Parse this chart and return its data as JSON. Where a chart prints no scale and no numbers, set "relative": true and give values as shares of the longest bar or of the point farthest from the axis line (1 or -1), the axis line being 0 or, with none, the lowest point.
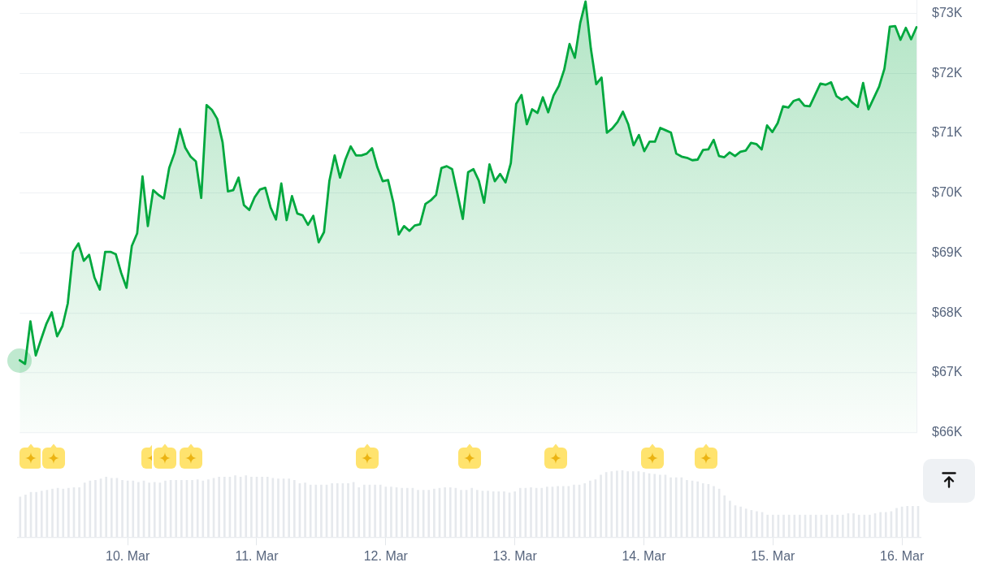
{
  "chart_data": [
    {
      "type": "area",
      "color": "#00a83e",
      "categories": [
        null,
        null,
        null,
        null,
        null,
        null,
        null,
        null,
        null,
        null,
        null,
        null,
        null,
        null,
        null,
        null,
        null,
        null,
        null,
        null,
        null,
        null,
        null,
        null,
        null,
        null,
        null,
        null,
        null,
        null,
        null,
        null,
        null,
        null,
        null,
        null,
        null,
        null,
        null,
        null,
        null,
        null,
        null,
        null,
        null,
        null,
        null,
        null,
        null,
        null,
        null,
        null,
        null,
        null,
        null,
        null,
        null,
        null,
        null,
        null,
        null,
        null,
        null,
        null,
        null,
        null,
        null,
        null,
        null,
        null,
        null,
        null,
        null,
        null,
        null,
        null,
        null,
        null,
        null,
        null,
        null,
        null,
        null,
        null,
        null,
        null,
        null,
        null,
        null,
        null,
        null,
        null,
        null,
        null,
        null,
        null,
        null,
        null,
        null,
        null,
        null,
        null,
        null,
        null,
        null,
        null,
        null,
        null,
        null,
        null,
        null,
        null,
        null,
        null,
        null,
        null,
        null,
        null,
        null,
        null,
        null,
        null,
        null,
        null,
        null,
        null,
        null,
        null,
        null,
        null,
        null,
        null,
        null,
        null,
        null,
        null,
        null,
        null,
        null,
        null,
        null,
        null,
        null,
        null,
        null,
        null,
        null,
        null,
        null,
        null,
        null,
        null,
        null,
        null,
        null,
        null,
        null,
        null,
        null,
        null,
        null,
        null,
        null,
        null,
        null,
        null,
        null,
        null,
        null
      ],
      "values": [
        67210,
        67150,
        67860,
        67290,
        67560,
        67820,
        68010,
        67610,
        67780,
        68160,
        69020,
        69160,
        68870,
        68970,
        68590,
        68390,
        69020,
        69020,
        68980,
        68670,
        68420,
        69120,
        69330,
        70280,
        69450,
        70050,
        69970,
        69910,
        70420,
        70670,
        71070,
        70760,
        70610,
        70530,
        69920,
        71470,
        71390,
        71240,
        70850,
        70030,
        70050,
        70260,
        69800,
        69720,
        69930,
        70060,
        70090,
        69760,
        69560,
        70160,
        69550,
        69950,
        69660,
        69630,
        69470,
        69620,
        69180,
        69350,
        70200,
        70630,
        70260,
        70560,
        70780,
        70630,
        70630,
        70660,
        70750,
        70430,
        70200,
        70220,
        69840,
        69310,
        69450,
        69370,
        69460,
        69480,
        69820,
        69880,
        69970,
        70420,
        70450,
        70400,
        69990,
        69570,
        70350,
        70400,
        70210,
        69840,
        70480,
        70200,
        70320,
        70180,
        70500,
        71490,
        71640,
        71150,
        71400,
        71340,
        71600,
        71350,
        71630,
        71790,
        72060,
        72490,
        72260,
        72840,
        73200,
        72410,
        71820,
        71930,
        71010,
        71080,
        71190,
        71360,
        71150,
        70800,
        70970,
        70700,
        70860,
        70860,
        71090,
        71050,
        71010,
        70660,
        70610,
        70590,
        70550,
        70560,
        70720,
        70730,
        70890,
        70620,
        70600,
        70680,
        70620,
        70690,
        70710,
        70840,
        70820,
        70730,
        71130,
        71020,
        71170,
        71450,
        71430,
        71540,
        71570,
        71460,
        71450,
        71640,
        71830,
        71810,
        71850,
        71620,
        71560,
        71610,
        71510,
        71440,
        71840,
        71400,
        71590,
        71780,
        72080,
        72780,
        72790,
        72560,
        72760,
        72570,
        72770
      ],
      "ylim": [
        66000,
        73230
      ],
      "yticks": [
        {
          "value": 66000,
          "label": "$66K"
        },
        {
          "value": 67000,
          "label": "$67K"
        },
        {
          "value": 68000,
          "label": "$68K"
        },
        {
          "value": 69000,
          "label": "$69K"
        },
        {
          "value": 70000,
          "label": "$70K"
        },
        {
          "value": 71000,
          "label": "$71K"
        },
        {
          "value": 72000,
          "label": "$72K"
        },
        {
          "value": 73000,
          "label": "$73K"
        }
      ],
      "grid": "y",
      "tick_labels": "y"
    },
    {
      "type": "bar",
      "relative": true,
      "color": "#e6e9ed",
      "categories": [
        null,
        null,
        null,
        null,
        null,
        null,
        null,
        null,
        null,
        null,
        null,
        null,
        null,
        null,
        null,
        null,
        null,
        null,
        null,
        null,
        "10. Mar",
        null,
        null,
        null,
        null,
        null,
        null,
        null,
        null,
        null,
        null,
        null,
        null,
        null,
        null,
        null,
        null,
        null,
        null,
        null,
        null,
        null,
        null,
        null,
        "11. Mar",
        null,
        null,
        null,
        null,
        null,
        null,
        null,
        null,
        null,
        null,
        null,
        null,
        null,
        null,
        null,
        null,
        null,
        null,
        null,
        null,
        null,
        null,
        null,
        "12. Mar",
        null,
        null,
        null,
        null,
        null,
        null,
        null,
        null,
        null,
        null,
        null,
        null,
        null,
        null,
        null,
        null,
        null,
        null,
        null,
        null,
        null,
        null,
        null,
        "13. Mar",
        null,
        null,
        null,
        null,
        null,
        null,
        null,
        null,
        null,
        null,
        null,
        null,
        null,
        null,
        null,
        null,
        null,
        null,
        null,
        null,
        null,
        null,
        null,
        "14. Mar",
        null,
        null,
        null,
        null,
        null,
        null,
        null,
        null,
        null,
        null,
        null,
        null,
        null,
        null,
        null,
        null,
        null,
        null,
        null,
        null,
        null,
        null,
        null,
        "15. Mar",
        null,
        null,
        null,
        null,
        null,
        null,
        null,
        null,
        null,
        null,
        null,
        null,
        null,
        null,
        null,
        null,
        null,
        null,
        null,
        null,
        null,
        null,
        null,
        "16. Mar",
        null,
        null,
        null
      ],
      "values": [
        0.6,
        0.63,
        0.67,
        0.67,
        0.69,
        0.7,
        0.72,
        0.73,
        0.72,
        0.73,
        0.74,
        0.74,
        0.81,
        0.84,
        0.85,
        0.87,
        0.9,
        0.88,
        0.88,
        0.85,
        0.84,
        0.84,
        0.82,
        0.84,
        0.81,
        0.82,
        0.81,
        0.84,
        0.85,
        0.85,
        0.85,
        0.85,
        0.85,
        0.86,
        0.84,
        0.86,
        0.88,
        0.9,
        0.9,
        0.9,
        0.92,
        0.9,
        0.92,
        0.9,
        0.9,
        0.9,
        0.9,
        0.88,
        0.87,
        0.87,
        0.87,
        0.85,
        0.8,
        0.81,
        0.78,
        0.78,
        0.78,
        0.78,
        0.8,
        0.8,
        0.8,
        0.8,
        0.82,
        0.74,
        0.78,
        0.78,
        0.78,
        0.78,
        0.75,
        0.75,
        0.74,
        0.73,
        0.73,
        0.73,
        0.7,
        0.7,
        0.7,
        0.72,
        0.73,
        0.74,
        0.74,
        0.73,
        0.7,
        0.7,
        0.73,
        0.7,
        0.69,
        0.69,
        0.68,
        0.68,
        0.68,
        0.66,
        0.68,
        0.73,
        0.73,
        0.74,
        0.73,
        0.73,
        0.75,
        0.75,
        0.76,
        0.76,
        0.76,
        0.78,
        0.78,
        0.8,
        0.84,
        0.86,
        0.93,
        0.97,
        0.98,
        0.99,
        1,
        0.98,
        0.98,
        0.98,
        0.97,
        0.95,
        0.94,
        0.93,
        0.93,
        0.89,
        0.89,
        0.89,
        0.85,
        0.84,
        0.83,
        0.8,
        0.79,
        0.76,
        0.72,
        0.62,
        0.54,
        0.47,
        0.45,
        0.42,
        0.4,
        0.38,
        0.37,
        0.33,
        0.33,
        0.33,
        0.33,
        0.33,
        0.33,
        0.33,
        0.33,
        0.33,
        0.33,
        0.33,
        0.33,
        0.33,
        0.33,
        0.33,
        0.35,
        0.35,
        0.33,
        0.33,
        0.33,
        0.35,
        0.37,
        0.37,
        0.38,
        0.43,
        0.45,
        0.46,
        0.46,
        0.46
      ],
      "tick_labels": "x"
    }
  ]
}
